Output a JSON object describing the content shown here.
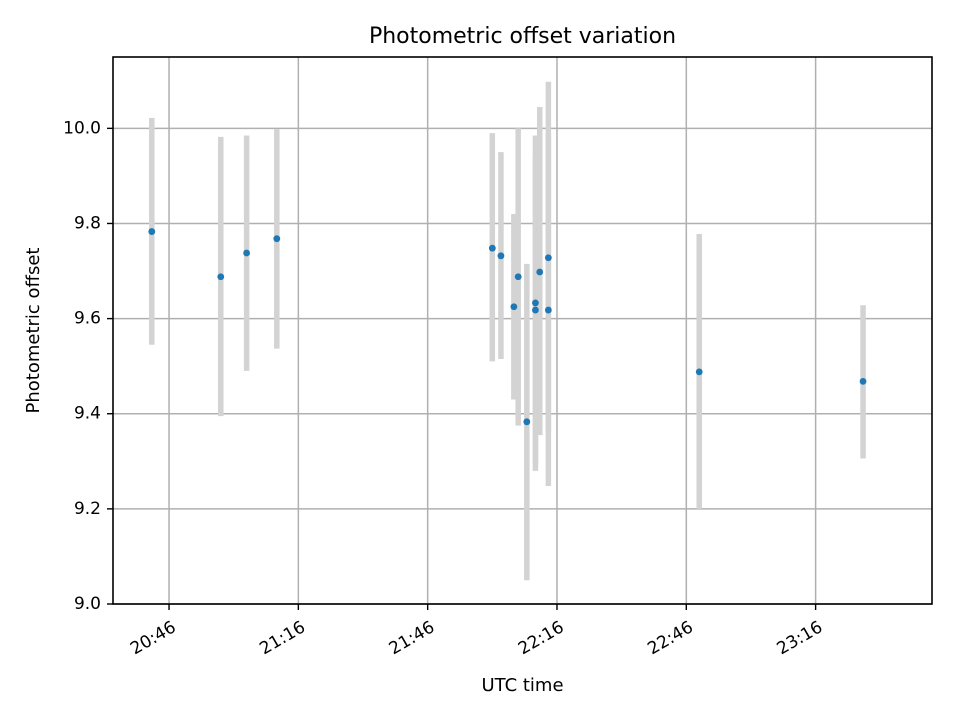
{
  "chart_data": {
    "type": "scatter",
    "title": "Photometric offset variation",
    "xlabel": "UTC time",
    "ylabel": "Photometric offset",
    "x_unit": "UTC time (HH:MM)",
    "xlim": [
      "20:33",
      "23:43"
    ],
    "ylim": [
      9.0,
      10.15
    ],
    "x_ticks": [
      "20:46",
      "21:16",
      "21:46",
      "22:16",
      "22:46",
      "23:16"
    ],
    "y_ticks": [
      "9.0",
      "9.2",
      "9.4",
      "9.6",
      "9.8",
      "10.0"
    ],
    "grid": true,
    "error_bars": "vertical, light gray",
    "colors": {
      "marker": "#1f77b4",
      "error_bar": "#d3d3d3"
    },
    "points": [
      {
        "x": "20:42",
        "y": 9.783,
        "yerr_low": 9.545,
        "yerr_high": 10.022
      },
      {
        "x": "20:58",
        "y": 9.688,
        "yerr_low": 9.395,
        "yerr_high": 9.982
      },
      {
        "x": "21:04",
        "y": 9.738,
        "yerr_low": 9.49,
        "yerr_high": 9.985
      },
      {
        "x": "21:11",
        "y": 9.768,
        "yerr_low": 9.537,
        "yerr_high": 9.998
      },
      {
        "x": "22:01",
        "y": 9.748,
        "yerr_low": 9.51,
        "yerr_high": 9.99
      },
      {
        "x": "22:03",
        "y": 9.732,
        "yerr_low": 9.515,
        "yerr_high": 9.95
      },
      {
        "x": "22:06",
        "y": 9.625,
        "yerr_low": 9.43,
        "yerr_high": 9.82
      },
      {
        "x": "22:07",
        "y": 9.688,
        "yerr_low": 9.375,
        "yerr_high": 10.0
      },
      {
        "x": "22:09",
        "y": 9.383,
        "yerr_low": 9.05,
        "yerr_high": 9.715
      },
      {
        "x": "22:11",
        "y": 9.618,
        "yerr_low": 9.295,
        "yerr_high": 9.945
      },
      {
        "x": "22:11",
        "y": 9.633,
        "yerr_low": 9.28,
        "yerr_high": 9.985
      },
      {
        "x": "22:12",
        "y": 9.698,
        "yerr_low": 9.355,
        "yerr_high": 10.045
      },
      {
        "x": "22:14",
        "y": 9.728,
        "yerr_low": 9.36,
        "yerr_high": 10.098
      },
      {
        "x": "22:14",
        "y": 9.618,
        "yerr_low": 9.248,
        "yerr_high": 9.99
      },
      {
        "x": "22:49",
        "y": 9.488,
        "yerr_low": 9.2,
        "yerr_high": 9.778
      },
      {
        "x": "23:27",
        "y": 9.468,
        "yerr_low": 9.306,
        "yerr_high": 9.628
      }
    ]
  }
}
